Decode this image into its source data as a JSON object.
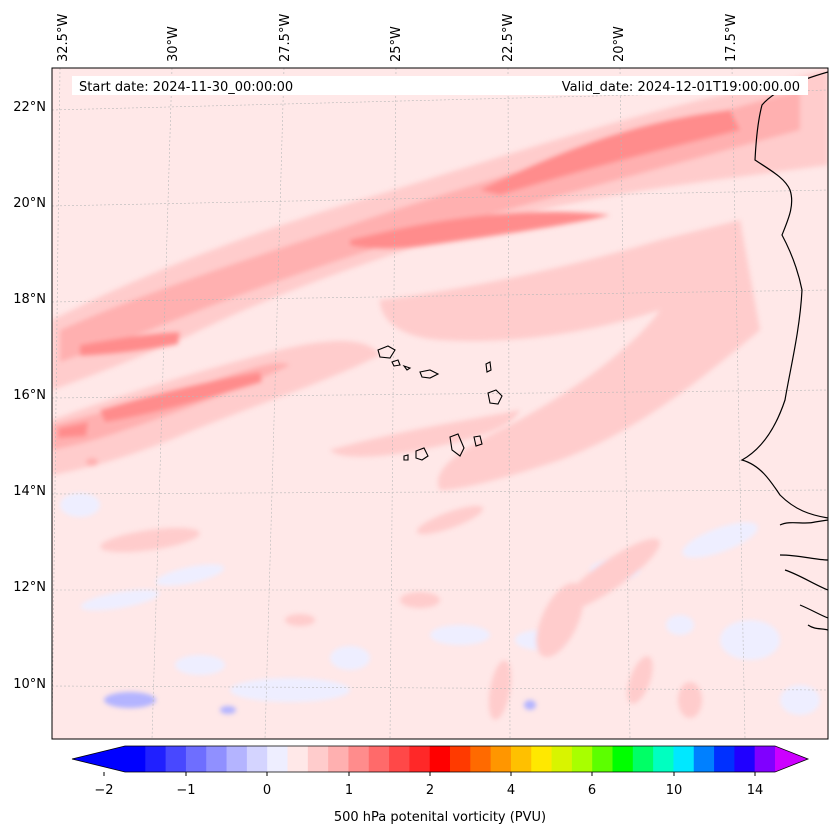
{
  "header": {
    "start_date": "Start date: 2024-11-30_00:00:00",
    "valid_date": "Valid_date: 2024-12-01T19:00:00.00"
  },
  "longitude_labels": [
    "32.5°W",
    "30°W",
    "27.5°W",
    "25°W",
    "22.5°W",
    "20°W",
    "17.5°W"
  ],
  "latitude_labels": [
    "22°N",
    "20°N",
    "18°N",
    "16°N",
    "14°N",
    "12°N",
    "10°N"
  ],
  "colorbar": {
    "label": "500 hPa potenital vorticity (PVU)",
    "tick_labels": [
      "−2",
      "−1",
      "0",
      "1",
      "2",
      "4",
      "6",
      "10",
      "14"
    ],
    "colors": [
      "#0000ff",
      "#2020ff",
      "#4848ff",
      "#6e6eff",
      "#9090ff",
      "#b4b4ff",
      "#d4d4ff",
      "#eeeeff",
      "#ffe8e8",
      "#ffcccc",
      "#ffb0b0",
      "#ff8c8c",
      "#ff6a6a",
      "#ff4848",
      "#ff2828",
      "#ff0000",
      "#ff3a00",
      "#ff6a00",
      "#ff9600",
      "#ffc000",
      "#ffe800",
      "#d8f400",
      "#a8ff00",
      "#5cff00",
      "#00ff00",
      "#00ff66",
      "#00ffc0",
      "#00e8ff",
      "#0080ff",
      "#0030ff",
      "#2000ff",
      "#8000ff"
    ],
    "over_color": "#cc00ff",
    "under_color": "#0000ff"
  },
  "map": {
    "background_color": "#ffe8e8",
    "coastline_color": "#000000"
  }
}
